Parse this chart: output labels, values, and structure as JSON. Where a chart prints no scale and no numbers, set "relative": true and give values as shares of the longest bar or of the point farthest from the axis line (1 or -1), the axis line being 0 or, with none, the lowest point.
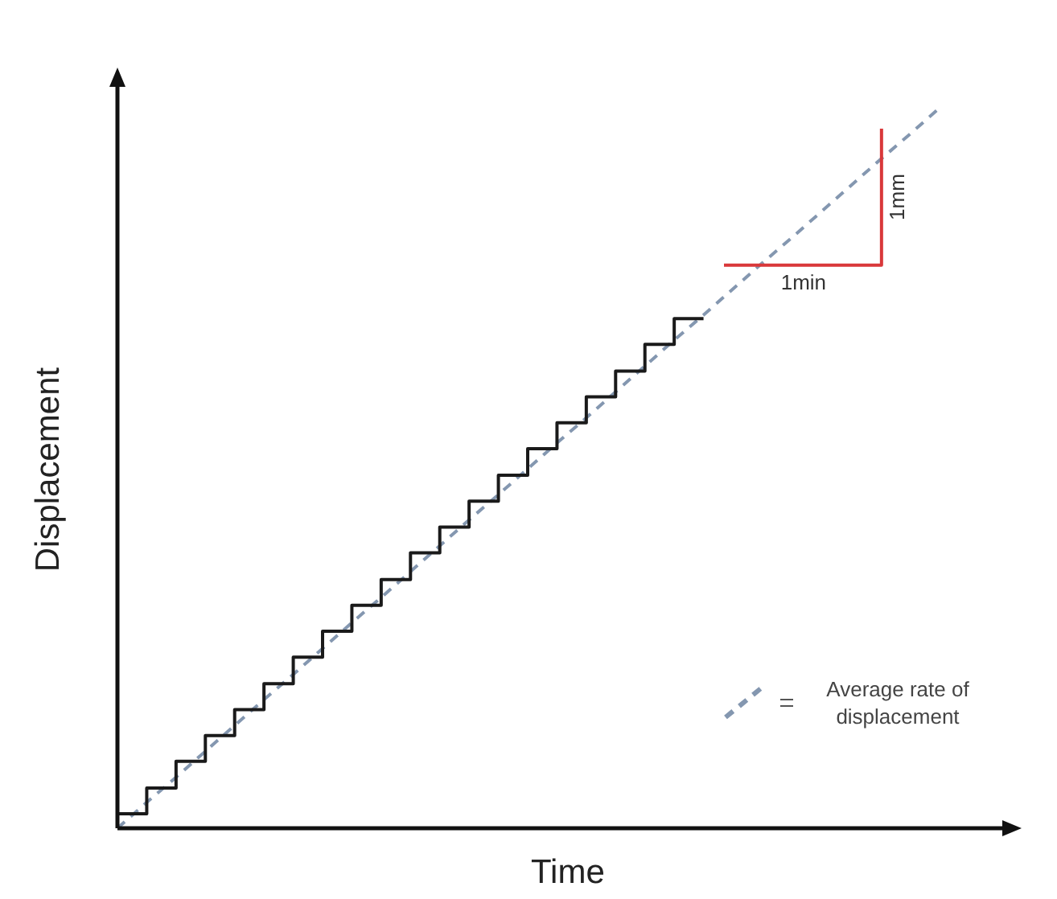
{
  "chart_data": {
    "type": "line",
    "relative": true,
    "xlabel": "Time",
    "ylabel": "Displacement",
    "legend": "bottom right",
    "tick_labels": false,
    "categories": [
      null,
      null,
      null,
      null,
      null,
      null,
      null,
      null,
      null,
      null,
      null,
      null,
      null,
      null,
      null,
      null,
      null,
      null,
      null,
      null,
      null,
      null,
      null,
      null,
      null,
      null,
      null,
      null,
      null
    ],
    "series": [
      {
        "type": "step",
        "color": "#1a1a1a",
        "line_style": "solid",
        "values": [
          0.02,
          0.056,
          0.093,
          0.129,
          0.165,
          0.201,
          0.238,
          0.274,
          0.31,
          0.346,
          0.383,
          0.419,
          0.455,
          0.491,
          0.528,
          0.564,
          0.6,
          0.636,
          0.673,
          0.709,
          0.709,
          null,
          null,
          null,
          null,
          null,
          null,
          null,
          null
        ]
      },
      {
        "name": "Average rate of displacement",
        "color": "#8497b0",
        "line_style": "dashed",
        "values": [
          0,
          0.036,
          0.071,
          0.107,
          0.143,
          0.179,
          0.214,
          0.25,
          0.286,
          0.321,
          0.357,
          0.393,
          0.429,
          0.464,
          0.5,
          0.536,
          0.571,
          0.607,
          0.643,
          0.679,
          0.714,
          0.75,
          0.786,
          0.821,
          0.857,
          0.893,
          0.929,
          0.964,
          1
        ]
      }
    ],
    "annotations": [
      "1min",
      "1mm"
    ]
  }
}
